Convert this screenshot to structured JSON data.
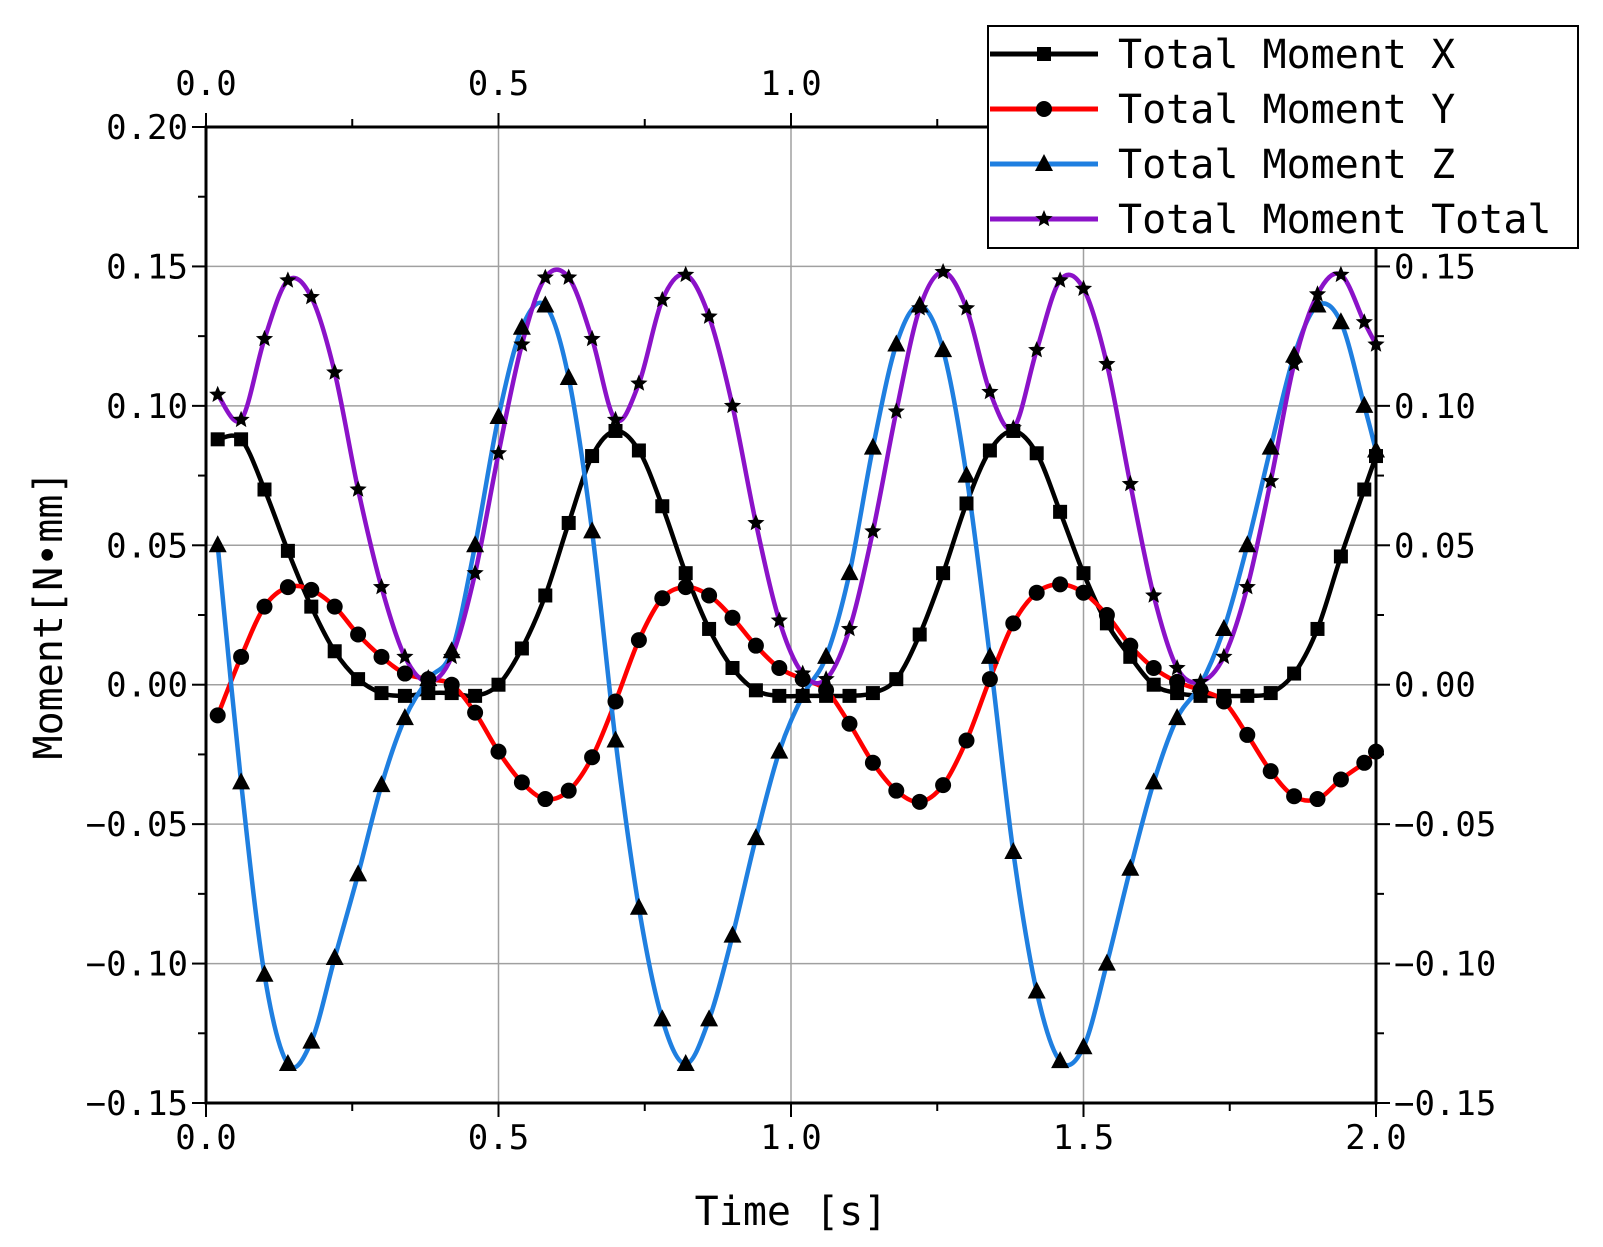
{
  "chart_data": {
    "type": "line",
    "title": "",
    "xlabel": "Time [s]",
    "ylabel": "Moment[N•mm]",
    "xlim": [
      0,
      2.0
    ],
    "ylim": [
      -0.15,
      0.2
    ],
    "x_ticks": [
      0.0,
      0.5,
      1.0,
      1.5,
      2.0
    ],
    "x_tick_labels": [
      "0.0",
      "0.5",
      "1.0",
      "1.5",
      "2.0"
    ],
    "top_x_tick_labels": [
      "0.0",
      "0.5",
      "1.0"
    ],
    "y_ticks": [
      -0.15,
      -0.1,
      -0.05,
      0.0,
      0.05,
      0.1,
      0.15,
      0.2
    ],
    "y_tick_labels": [
      "−0.15",
      "−0.10",
      "−0.05",
      "0.00",
      "0.05",
      "0.10",
      "0.15",
      "0.20"
    ],
    "right_y_tick_labels": [
      "−0.15",
      "−0.10",
      "−0.05",
      "0.00",
      "0.05",
      "0.10",
      "0.15"
    ],
    "grid": true,
    "legend_position": "top-right",
    "x": [
      0.02,
      0.06,
      0.1,
      0.14,
      0.18,
      0.22,
      0.26,
      0.3,
      0.34,
      0.38,
      0.42,
      0.46,
      0.5,
      0.54,
      0.58,
      0.62,
      0.66,
      0.7,
      0.74,
      0.78,
      0.82,
      0.86,
      0.9,
      0.94,
      0.98,
      1.02,
      1.06,
      1.1,
      1.14,
      1.18,
      1.22,
      1.26,
      1.3,
      1.34,
      1.38,
      1.42,
      1.46,
      1.5,
      1.54,
      1.58,
      1.62,
      1.66,
      1.7,
      1.74,
      1.78,
      1.82,
      1.86,
      1.9,
      1.94,
      1.98,
      2.0
    ],
    "series": [
      {
        "name": "Total Moment X",
        "color": "#000000",
        "marker": "square",
        "values": [
          0.088,
          0.088,
          0.07,
          0.048,
          0.028,
          0.012,
          0.002,
          -0.003,
          -0.004,
          -0.003,
          -0.003,
          -0.004,
          0.0,
          0.013,
          0.032,
          0.058,
          0.082,
          0.091,
          0.084,
          0.064,
          0.04,
          0.02,
          0.006,
          -0.002,
          -0.004,
          -0.004,
          -0.004,
          -0.004,
          -0.003,
          0.002,
          0.018,
          0.04,
          0.065,
          0.084,
          0.091,
          0.083,
          0.062,
          0.04,
          0.022,
          0.01,
          0.0,
          -0.003,
          -0.004,
          -0.004,
          -0.004,
          -0.003,
          0.004,
          0.02,
          0.046,
          0.07,
          0.082
        ]
      },
      {
        "name": "Total Moment Y",
        "color": "#ff0000",
        "marker": "circle",
        "values": [
          -0.011,
          0.01,
          0.028,
          0.035,
          0.034,
          0.028,
          0.018,
          0.01,
          0.004,
          0.002,
          0.0,
          -0.01,
          -0.024,
          -0.035,
          -0.041,
          -0.038,
          -0.026,
          -0.006,
          0.016,
          0.031,
          0.035,
          0.032,
          0.024,
          0.014,
          0.006,
          0.002,
          -0.002,
          -0.014,
          -0.028,
          -0.038,
          -0.042,
          -0.036,
          -0.02,
          0.002,
          0.022,
          0.033,
          0.036,
          0.033,
          0.025,
          0.014,
          0.006,
          0.001,
          -0.002,
          -0.006,
          -0.018,
          -0.031,
          -0.04,
          -0.041,
          -0.034,
          -0.028,
          -0.024
        ]
      },
      {
        "name": "Total Moment Z",
        "color": "#1f7fe0",
        "marker": "triangle",
        "values": [
          0.05,
          -0.035,
          -0.104,
          -0.136,
          -0.128,
          -0.098,
          -0.068,
          -0.036,
          -0.012,
          0.002,
          0.012,
          0.05,
          0.096,
          0.128,
          0.136,
          0.11,
          0.055,
          -0.02,
          -0.08,
          -0.12,
          -0.136,
          -0.12,
          -0.09,
          -0.055,
          -0.024,
          -0.004,
          0.01,
          0.04,
          0.085,
          0.122,
          0.136,
          0.12,
          0.075,
          0.01,
          -0.06,
          -0.11,
          -0.135,
          -0.13,
          -0.1,
          -0.066,
          -0.035,
          -0.012,
          0.0,
          0.02,
          0.05,
          0.085,
          0.118,
          0.136,
          0.13,
          0.1,
          0.084
        ]
      },
      {
        "name": "Total Moment Total",
        "color": "#8b12c8",
        "marker": "star",
        "values": [
          0.104,
          0.095,
          0.124,
          0.145,
          0.139,
          0.112,
          0.07,
          0.035,
          0.01,
          0.001,
          0.01,
          0.04,
          0.083,
          0.122,
          0.146,
          0.146,
          0.124,
          0.095,
          0.108,
          0.138,
          0.147,
          0.132,
          0.1,
          0.058,
          0.023,
          0.004,
          0.002,
          0.02,
          0.055,
          0.098,
          0.135,
          0.148,
          0.135,
          0.105,
          0.092,
          0.12,
          0.145,
          0.142,
          0.115,
          0.072,
          0.032,
          0.006,
          0.001,
          0.01,
          0.035,
          0.073,
          0.115,
          0.14,
          0.147,
          0.13,
          0.122
        ]
      }
    ]
  }
}
